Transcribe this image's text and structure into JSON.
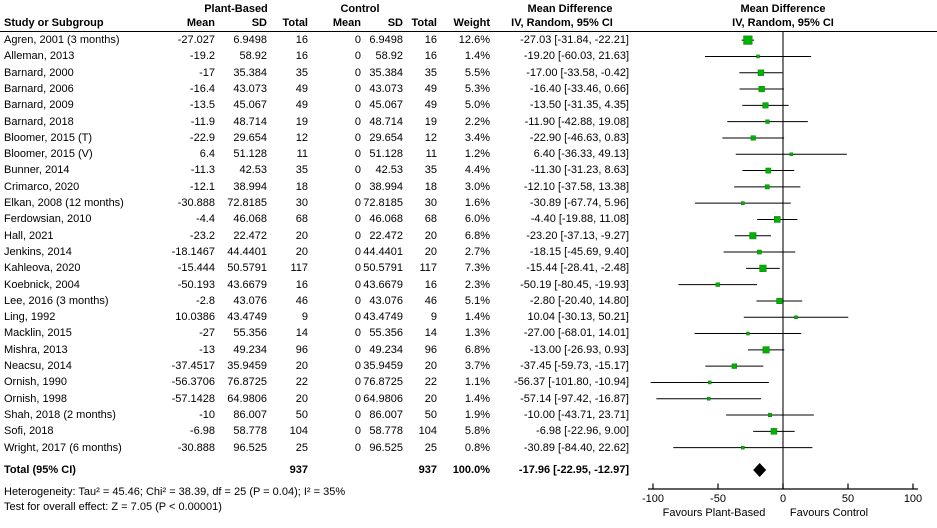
{
  "headers": {
    "group1": "Plant-Based",
    "group2": "Control",
    "md": "Mean Difference",
    "sub": "IV, Random, 95% CI",
    "study": "Study or Subgroup",
    "mean": "Mean",
    "sd": "SD",
    "total": "Total",
    "weight": "Weight"
  },
  "table": {
    "rows": [
      {
        "study": "Agren, 2001 (3 months)",
        "mean_pb": "-27.027",
        "sd_pb": "6.9498",
        "n_pb": "16",
        "mean_c": "0",
        "sd_c": "6.9498",
        "n_c": "16",
        "weight": "12.6%",
        "ci_text": "-27.03 [-31.84, -22.21]"
      },
      {
        "study": "Alleman, 2013",
        "mean_pb": "-19.2",
        "sd_pb": "58.92",
        "n_pb": "16",
        "mean_c": "0",
        "sd_c": "58.92",
        "n_c": "16",
        "weight": "1.4%",
        "ci_text": "-19.20 [-60.03, 21.63]"
      },
      {
        "study": "Barnard, 2000",
        "mean_pb": "-17",
        "sd_pb": "35.384",
        "n_pb": "35",
        "mean_c": "0",
        "sd_c": "35.384",
        "n_c": "35",
        "weight": "5.5%",
        "ci_text": "-17.00 [-33.58, -0.42]"
      },
      {
        "study": "Barnard, 2006",
        "mean_pb": "-16.4",
        "sd_pb": "43.073",
        "n_pb": "49",
        "mean_c": "0",
        "sd_c": "43.073",
        "n_c": "49",
        "weight": "5.3%",
        "ci_text": "-16.40 [-33.46, 0.66]"
      },
      {
        "study": "Barnard, 2009",
        "mean_pb": "-13.5",
        "sd_pb": "45.067",
        "n_pb": "49",
        "mean_c": "0",
        "sd_c": "45.067",
        "n_c": "49",
        "weight": "5.0%",
        "ci_text": "-13.50 [-31.35, 4.35]"
      },
      {
        "study": "Barnard, 2018",
        "mean_pb": "-11.9",
        "sd_pb": "48.714",
        "n_pb": "19",
        "mean_c": "0",
        "sd_c": "48.714",
        "n_c": "19",
        "weight": "2.2%",
        "ci_text": "-11.90 [-42.88, 19.08]"
      },
      {
        "study": "Bloomer, 2015 (T)",
        "mean_pb": "-22.9",
        "sd_pb": "29.654",
        "n_pb": "12",
        "mean_c": "0",
        "sd_c": "29.654",
        "n_c": "12",
        "weight": "3.4%",
        "ci_text": "-22.90 [-46.63, 0.83]"
      },
      {
        "study": "Bloomer, 2015 (V)",
        "mean_pb": "6.4",
        "sd_pb": "51.128",
        "n_pb": "11",
        "mean_c": "0",
        "sd_c": "51.128",
        "n_c": "11",
        "weight": "1.2%",
        "ci_text": "6.40 [-36.33, 49.13]"
      },
      {
        "study": "Bunner, 2014",
        "mean_pb": "-11.3",
        "sd_pb": "42.53",
        "n_pb": "35",
        "mean_c": "0",
        "sd_c": "42.53",
        "n_c": "35",
        "weight": "4.4%",
        "ci_text": "-11.30 [-31.23, 8.63]"
      },
      {
        "study": "Crimarco, 2020",
        "mean_pb": "-12.1",
        "sd_pb": "38.994",
        "n_pb": "18",
        "mean_c": "0",
        "sd_c": "38.994",
        "n_c": "18",
        "weight": "3.0%",
        "ci_text": "-12.10 [-37.58, 13.38]"
      },
      {
        "study": "Elkan, 2008 (12 months)",
        "mean_pb": "-30.888",
        "sd_pb": "72.8185",
        "n_pb": "30",
        "mean_c": "0",
        "sd_c": "72.8185",
        "n_c": "30",
        "weight": "1.6%",
        "ci_text": "-30.89 [-67.74, 5.96]"
      },
      {
        "study": "Ferdowsian, 2010",
        "mean_pb": "-4.4",
        "sd_pb": "46.068",
        "n_pb": "68",
        "mean_c": "0",
        "sd_c": "46.068",
        "n_c": "68",
        "weight": "6.0%",
        "ci_text": "-4.40 [-19.88, 11.08]"
      },
      {
        "study": "Hall, 2021",
        "mean_pb": "-23.2",
        "sd_pb": "22.472",
        "n_pb": "20",
        "mean_c": "0",
        "sd_c": "22.472",
        "n_c": "20",
        "weight": "6.8%",
        "ci_text": "-23.20 [-37.13, -9.27]"
      },
      {
        "study": "Jenkins, 2014",
        "mean_pb": "-18.1467",
        "sd_pb": "44.4401",
        "n_pb": "20",
        "mean_c": "0",
        "sd_c": "44.4401",
        "n_c": "20",
        "weight": "2.7%",
        "ci_text": "-18.15 [-45.69, 9.40]"
      },
      {
        "study": "Kahleova, 2020",
        "mean_pb": "-15.444",
        "sd_pb": "50.5791",
        "n_pb": "117",
        "mean_c": "0",
        "sd_c": "50.5791",
        "n_c": "117",
        "weight": "7.3%",
        "ci_text": "-15.44 [-28.41, -2.48]"
      },
      {
        "study": "Koebnick, 2004",
        "mean_pb": "-50.193",
        "sd_pb": "43.6679",
        "n_pb": "16",
        "mean_c": "0",
        "sd_c": "43.6679",
        "n_c": "16",
        "weight": "2.3%",
        "ci_text": "-50.19 [-80.45, -19.93]"
      },
      {
        "study": "Lee, 2016 (3 months)",
        "mean_pb": "-2.8",
        "sd_pb": "43.076",
        "n_pb": "46",
        "mean_c": "0",
        "sd_c": "43.076",
        "n_c": "46",
        "weight": "5.1%",
        "ci_text": "-2.80 [-20.40, 14.80]"
      },
      {
        "study": "Ling, 1992",
        "mean_pb": "10.0386",
        "sd_pb": "43.4749",
        "n_pb": "9",
        "mean_c": "0",
        "sd_c": "43.4749",
        "n_c": "9",
        "weight": "1.4%",
        "ci_text": "10.04 [-30.13, 50.21]"
      },
      {
        "study": "Macklin, 2015",
        "mean_pb": "-27",
        "sd_pb": "55.356",
        "n_pb": "14",
        "mean_c": "0",
        "sd_c": "55.356",
        "n_c": "14",
        "weight": "1.3%",
        "ci_text": "-27.00 [-68.01, 14.01]"
      },
      {
        "study": "Mishra, 2013",
        "mean_pb": "-13",
        "sd_pb": "49.234",
        "n_pb": "96",
        "mean_c": "0",
        "sd_c": "49.234",
        "n_c": "96",
        "weight": "6.8%",
        "ci_text": "-13.00 [-26.93, 0.93]"
      },
      {
        "study": "Neacsu, 2014",
        "mean_pb": "-37.4517",
        "sd_pb": "35.9459",
        "n_pb": "20",
        "mean_c": "0",
        "sd_c": "35.9459",
        "n_c": "20",
        "weight": "3.7%",
        "ci_text": "-37.45 [-59.73, -15.17]"
      },
      {
        "study": "Ornish, 1990",
        "mean_pb": "-56.3706",
        "sd_pb": "76.8725",
        "n_pb": "22",
        "mean_c": "0",
        "sd_c": "76.8725",
        "n_c": "22",
        "weight": "1.1%",
        "ci_text": "-56.37 [-101.80, -10.94]"
      },
      {
        "study": "Ornish, 1998",
        "mean_pb": "-57.1428",
        "sd_pb": "64.9806",
        "n_pb": "20",
        "mean_c": "0",
        "sd_c": "64.9806",
        "n_c": "20",
        "weight": "1.4%",
        "ci_text": "-57.14 [-97.42, -16.87]"
      },
      {
        "study": "Shah, 2018 (2 months)",
        "mean_pb": "-10",
        "sd_pb": "86.007",
        "n_pb": "50",
        "mean_c": "0",
        "sd_c": "86.007",
        "n_c": "50",
        "weight": "1.9%",
        "ci_text": "-10.00 [-43.71, 23.71]"
      },
      {
        "study": "Sofi, 2018",
        "mean_pb": "-6.98",
        "sd_pb": "58.778",
        "n_pb": "104",
        "mean_c": "0",
        "sd_c": "58.778",
        "n_c": "104",
        "weight": "5.8%",
        "ci_text": "-6.98 [-22.96, 9.00]"
      },
      {
        "study": "Wright, 2017 (6 months)",
        "mean_pb": "-30.888",
        "sd_pb": "96.525",
        "n_pb": "25",
        "mean_c": "0",
        "sd_c": "96.525",
        "n_c": "25",
        "weight": "0.8%",
        "ci_text": "-30.89 [-84.40, 22.62]"
      }
    ],
    "total_row": {
      "label": "Total (95% CI)",
      "n_pb": "937",
      "n_c": "937",
      "weight": "100.0%",
      "ci_text": "-17.96 [-22.95, -12.97]"
    }
  },
  "footnotes": {
    "heterogeneity": "Heterogeneity: Tau² = 45.46; Chi² = 38.39, df = 25 (P = 0.04); I² = 35%",
    "overall_effect": "Test for overall effect: Z = 7.05 (P < 0.00001)"
  },
  "axis": {
    "tick_labels": [
      "-100",
      "-50",
      "0",
      "50",
      "100"
    ],
    "favours_left": "Favours Plant-Based",
    "favours_right": "Favours Control"
  },
  "colors": {
    "marker_green": "#00b300",
    "marker_edge": "#067d06",
    "ci_line": "#000000",
    "zero_line": "#333333",
    "axis": "#000000",
    "diamond": "#000000"
  },
  "chart_data": {
    "type": "scatter",
    "subtype": "forest-plot",
    "title": "Mean Difference",
    "subtitle": "IV, Random, 95% CI",
    "effect_measure": "Mean Difference",
    "model": "IV, Random, 95% CI",
    "xlim": [
      -100,
      100
    ],
    "x_ticks": [
      -100,
      -50,
      0,
      50,
      100
    ],
    "xlabel_left": "Favours Plant-Based",
    "xlabel_right": "Favours Control",
    "studies": [
      {
        "name": "Agren, 2001 (3 months)",
        "estimate": -27.03,
        "ci_lower": -31.84,
        "ci_upper": -22.21,
        "weight_pct": 12.6
      },
      {
        "name": "Alleman, 2013",
        "estimate": -19.2,
        "ci_lower": -60.03,
        "ci_upper": 21.63,
        "weight_pct": 1.4
      },
      {
        "name": "Barnard, 2000",
        "estimate": -17.0,
        "ci_lower": -33.58,
        "ci_upper": -0.42,
        "weight_pct": 5.5
      },
      {
        "name": "Barnard, 2006",
        "estimate": -16.4,
        "ci_lower": -33.46,
        "ci_upper": 0.66,
        "weight_pct": 5.3
      },
      {
        "name": "Barnard, 2009",
        "estimate": -13.5,
        "ci_lower": -31.35,
        "ci_upper": 4.35,
        "weight_pct": 5.0
      },
      {
        "name": "Barnard, 2018",
        "estimate": -11.9,
        "ci_lower": -42.88,
        "ci_upper": 19.08,
        "weight_pct": 2.2
      },
      {
        "name": "Bloomer, 2015 (T)",
        "estimate": -22.9,
        "ci_lower": -46.63,
        "ci_upper": 0.83,
        "weight_pct": 3.4
      },
      {
        "name": "Bloomer, 2015 (V)",
        "estimate": 6.4,
        "ci_lower": -36.33,
        "ci_upper": 49.13,
        "weight_pct": 1.2
      },
      {
        "name": "Bunner, 2014",
        "estimate": -11.3,
        "ci_lower": -31.23,
        "ci_upper": 8.63,
        "weight_pct": 4.4
      },
      {
        "name": "Crimarco, 2020",
        "estimate": -12.1,
        "ci_lower": -37.58,
        "ci_upper": 13.38,
        "weight_pct": 3.0
      },
      {
        "name": "Elkan, 2008 (12 months)",
        "estimate": -30.89,
        "ci_lower": -67.74,
        "ci_upper": 5.96,
        "weight_pct": 1.6
      },
      {
        "name": "Ferdowsian, 2010",
        "estimate": -4.4,
        "ci_lower": -19.88,
        "ci_upper": 11.08,
        "weight_pct": 6.0
      },
      {
        "name": "Hall, 2021",
        "estimate": -23.2,
        "ci_lower": -37.13,
        "ci_upper": -9.27,
        "weight_pct": 6.8
      },
      {
        "name": "Jenkins, 2014",
        "estimate": -18.15,
        "ci_lower": -45.69,
        "ci_upper": 9.4,
        "weight_pct": 2.7
      },
      {
        "name": "Kahleova, 2020",
        "estimate": -15.44,
        "ci_lower": -28.41,
        "ci_upper": -2.48,
        "weight_pct": 7.3
      },
      {
        "name": "Koebnick, 2004",
        "estimate": -50.19,
        "ci_lower": -80.45,
        "ci_upper": -19.93,
        "weight_pct": 2.3
      },
      {
        "name": "Lee, 2016 (3 months)",
        "estimate": -2.8,
        "ci_lower": -20.4,
        "ci_upper": 14.8,
        "weight_pct": 5.1
      },
      {
        "name": "Ling, 1992",
        "estimate": 10.04,
        "ci_lower": -30.13,
        "ci_upper": 50.21,
        "weight_pct": 1.4
      },
      {
        "name": "Macklin, 2015",
        "estimate": -27.0,
        "ci_lower": -68.01,
        "ci_upper": 14.01,
        "weight_pct": 1.3
      },
      {
        "name": "Mishra, 2013",
        "estimate": -13.0,
        "ci_lower": -26.93,
        "ci_upper": 0.93,
        "weight_pct": 6.8
      },
      {
        "name": "Neacsu, 2014",
        "estimate": -37.45,
        "ci_lower": -59.73,
        "ci_upper": -15.17,
        "weight_pct": 3.7
      },
      {
        "name": "Ornish, 1990",
        "estimate": -56.37,
        "ci_lower": -101.8,
        "ci_upper": -10.94,
        "weight_pct": 1.1
      },
      {
        "name": "Ornish, 1998",
        "estimate": -57.14,
        "ci_lower": -97.42,
        "ci_upper": -16.87,
        "weight_pct": 1.4
      },
      {
        "name": "Shah, 2018 (2 months)",
        "estimate": -10.0,
        "ci_lower": -43.71,
        "ci_upper": 23.71,
        "weight_pct": 1.9
      },
      {
        "name": "Sofi, 2018",
        "estimate": -6.98,
        "ci_lower": -22.96,
        "ci_upper": 9.0,
        "weight_pct": 5.8
      },
      {
        "name": "Wright, 2017 (6 months)",
        "estimate": -30.89,
        "ci_lower": -84.4,
        "ci_upper": 22.62,
        "weight_pct": 0.8
      }
    ],
    "total": {
      "name": "Total (95% CI)",
      "estimate": -17.96,
      "ci_lower": -22.95,
      "ci_upper": -12.97,
      "weight_pct": 100.0
    }
  }
}
